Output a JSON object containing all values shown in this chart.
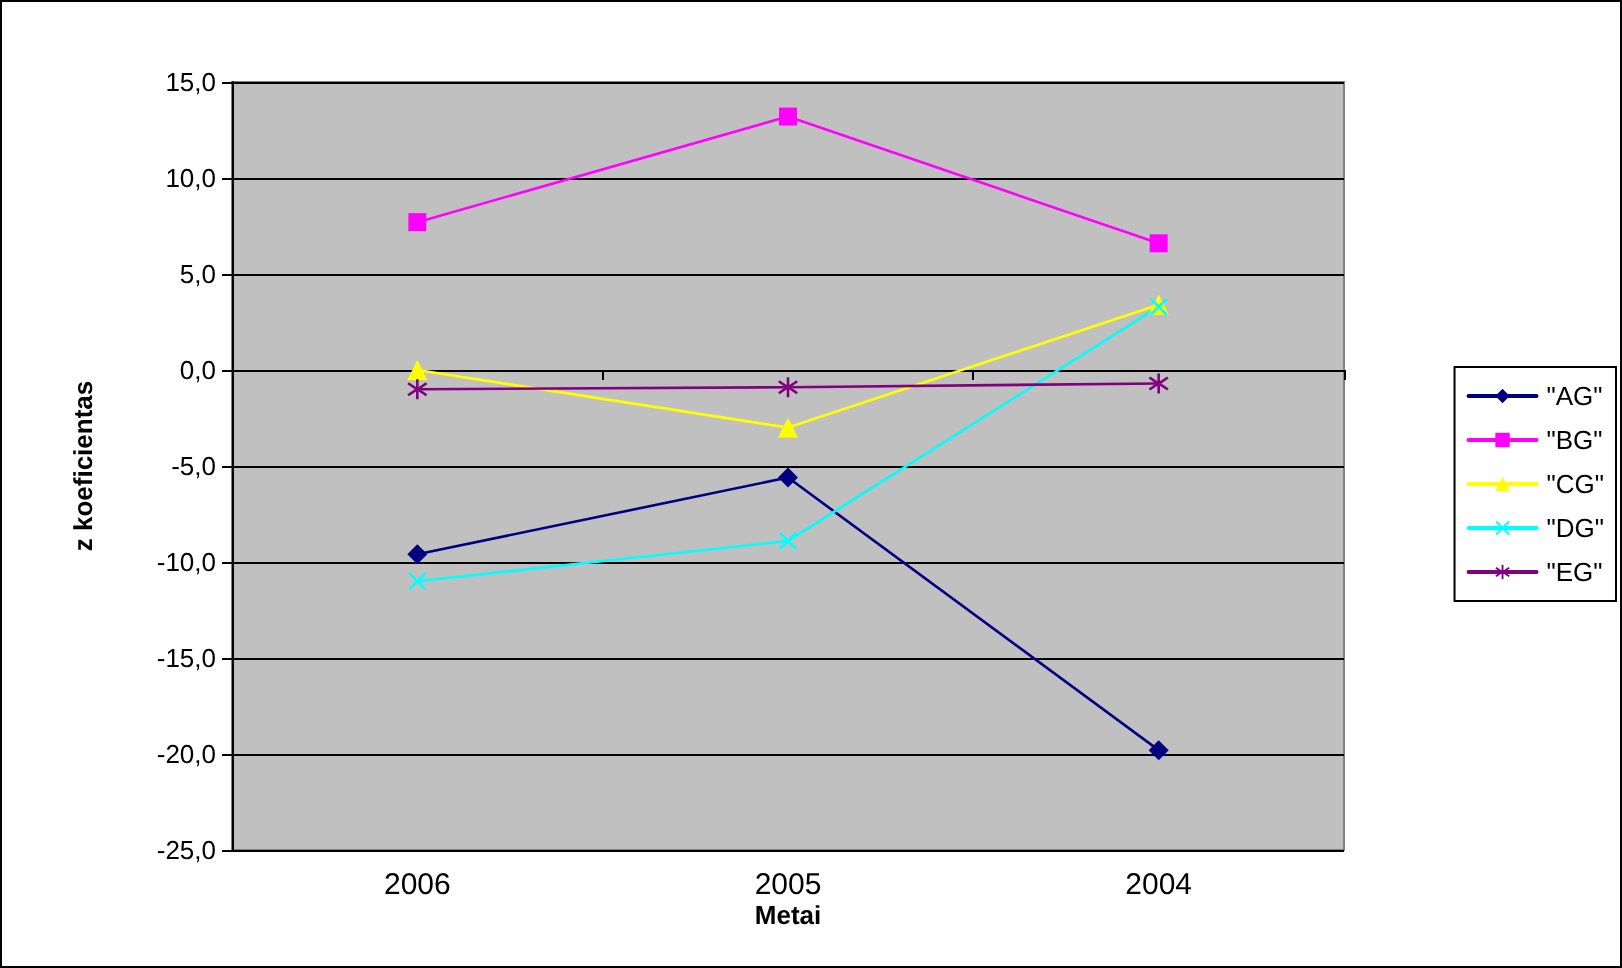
{
  "chart_data": {
    "type": "line",
    "xlabel": "Metai",
    "ylabel": "z koeficientas",
    "categories": [
      "2006",
      "2005",
      "2004"
    ],
    "series": [
      {
        "name": "\"AG\"",
        "color": "#000080",
        "marker": "diamond",
        "values": [
          -9.6,
          -5.6,
          -19.8
        ]
      },
      {
        "name": "\"BG\"",
        "color": "#ff00ff",
        "marker": "square",
        "values": [
          7.7,
          13.2,
          6.6
        ]
      },
      {
        "name": "\"CG\"",
        "color": "#ffff00",
        "marker": "triangle",
        "values": [
          0.0,
          -3.0,
          3.4
        ]
      },
      {
        "name": "\"DG\"",
        "color": "#00ffff",
        "marker": "cross",
        "values": [
          -11.0,
          -8.9,
          3.3
        ]
      },
      {
        "name": "\"EG\"",
        "color": "#800080",
        "marker": "star",
        "values": [
          -1.0,
          -0.9,
          -0.7
        ]
      }
    ],
    "ylim": [
      -25,
      15
    ],
    "yticks": [
      {
        "value": -25,
        "label": "-25,0"
      },
      {
        "value": -20,
        "label": "-20,0"
      },
      {
        "value": -15,
        "label": "-15,0"
      },
      {
        "value": -10,
        "label": "-10,0"
      },
      {
        "value": -5,
        "label": "-5,0"
      },
      {
        "value": 0,
        "label": "0,0"
      },
      {
        "value": 5,
        "label": "5,0"
      },
      {
        "value": 10,
        "label": "10,0"
      },
      {
        "value": 15,
        "label": "15,0"
      }
    ],
    "grid": "y",
    "legend": "right",
    "line_style": "solid"
  }
}
